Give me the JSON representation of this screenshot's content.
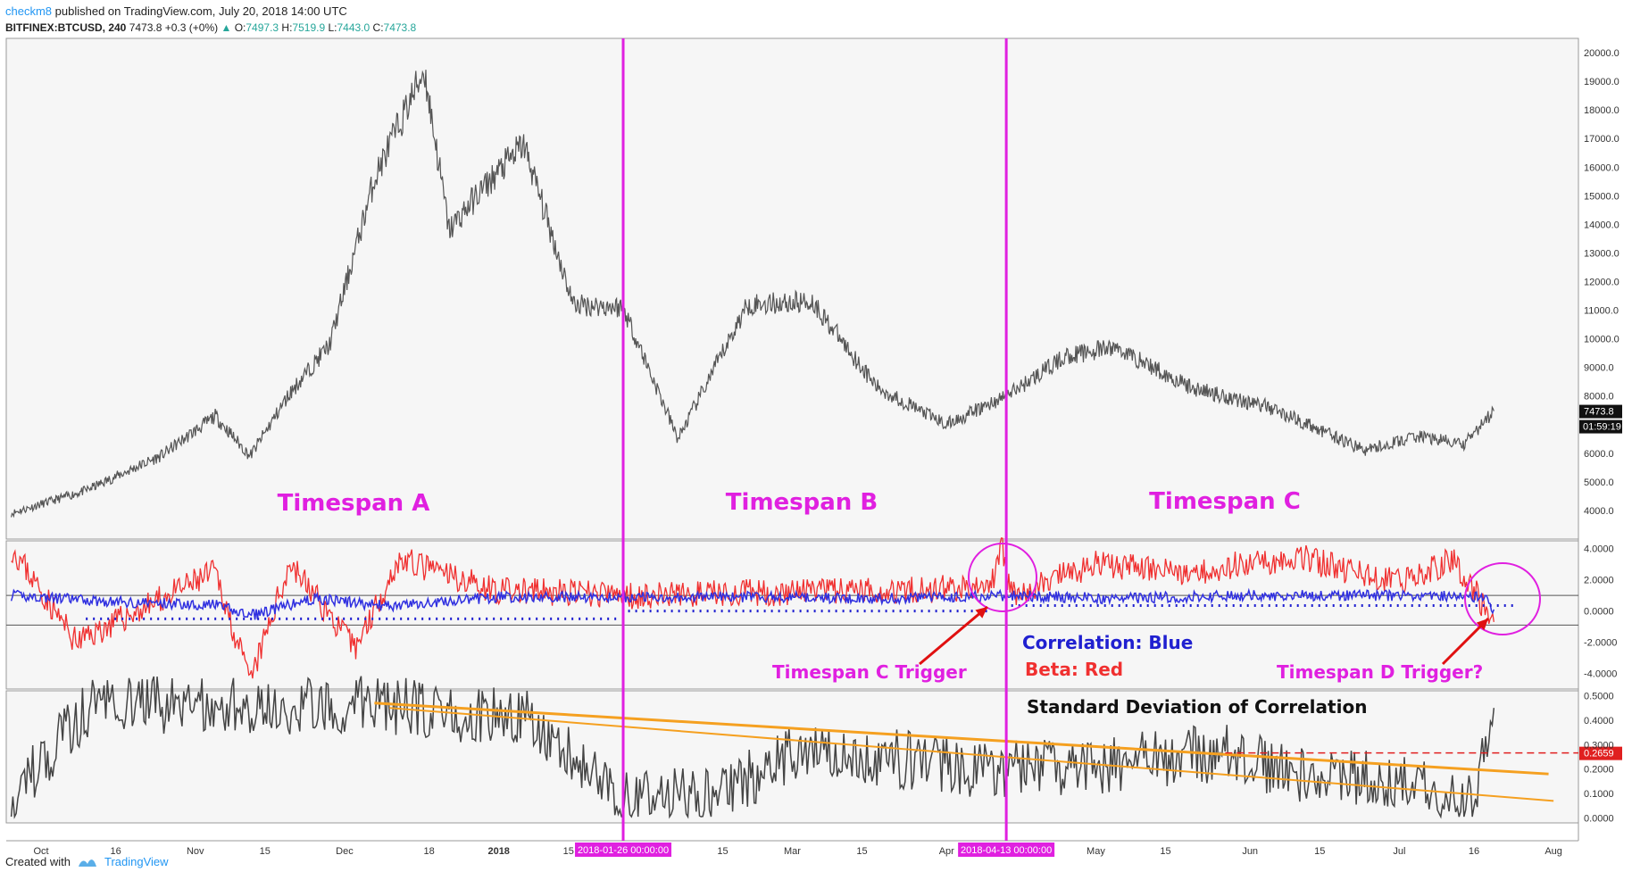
{
  "header": {
    "author": "checkm8",
    "published": " published on TradingView.com, July 20, 2018 14:00 UTC",
    "symbol": "BITFINEX:BTCUSD, 240",
    "last": "7473.8",
    "change": "+0.3 (+0%)",
    "o_label": "O:",
    "o": "7497.3",
    "h_label": "H:",
    "h": "7519.9",
    "l_label": "L:",
    "l": "7443.0",
    "c_label": "C:",
    "c": "7473.8"
  },
  "footer": {
    "created": "Created with",
    "brand": "TradingView"
  },
  "colors": {
    "magenta": "#e020e0",
    "beta": "#f03030",
    "corr": "#3030e0",
    "orange": "#f5a020",
    "price": "#555555"
  },
  "chart_data": [
    {
      "type": "line",
      "title": "BITFINEX:BTCUSD 240 price",
      "x": [
        "2017-09-25",
        "2017-10-10",
        "2017-10-25",
        "2017-11-05",
        "2017-11-12",
        "2017-11-20",
        "2017-11-28",
        "2017-12-07",
        "2017-12-17",
        "2017-12-22",
        "2017-12-28",
        "2018-01-06",
        "2018-01-16",
        "2018-01-26",
        "2018-02-06",
        "2018-02-20",
        "2018-03-05",
        "2018-03-18",
        "2018-04-01",
        "2018-04-13",
        "2018-04-25",
        "2018-05-05",
        "2018-05-20",
        "2018-06-05",
        "2018-06-24",
        "2018-07-05",
        "2018-07-14",
        "2018-07-20"
      ],
      "values": [
        3900,
        4700,
        5900,
        7300,
        5900,
        8100,
        9800,
        15600,
        19400,
        13800,
        15100,
        16800,
        11200,
        11100,
        6500,
        11200,
        11300,
        8300,
        7000,
        8000,
        9400,
        9700,
        8300,
        7600,
        6100,
        6600,
        6300,
        7473.8
      ],
      "ylim": [
        3000,
        20500
      ],
      "yticks": [
        "3000.0",
        "4000.0",
        "5000.0",
        "6000.0",
        "7000.0",
        "8000.0",
        "9000.0",
        "10000.0",
        "11000.0",
        "12000.0",
        "13000.0",
        "14000.0",
        "15000.0",
        "16000.0",
        "17000.0",
        "18000.0",
        "19000.0",
        "20000.0"
      ],
      "last_price_label": "7473.8",
      "countdown_label": "01:59:19",
      "annotations": [
        "Timespan A",
        "Timespan B",
        "Timespan C"
      ]
    },
    {
      "type": "line",
      "title": "Correlation / Beta",
      "series": [
        {
          "name": "Correlation",
          "color": "#3030e0",
          "x": [
            "2017-09-25",
            "2017-10-15",
            "2017-11-05",
            "2017-11-12",
            "2017-11-25",
            "2017-12-10",
            "2018-01-01",
            "2018-01-26",
            "2018-02-20",
            "2018-03-20",
            "2018-04-13",
            "2018-05-05",
            "2018-06-01",
            "2018-07-01",
            "2018-07-18",
            "2018-07-20"
          ],
          "values": [
            1.0,
            0.6,
            0.4,
            -0.3,
            0.8,
            0.3,
            0.9,
            0.9,
            0.9,
            0.8,
            1.0,
            0.8,
            1.0,
            1.0,
            0.9,
            0.1
          ]
        },
        {
          "name": "Beta",
          "color": "#f03030",
          "x": [
            "2017-09-25",
            "2017-10-08",
            "2017-11-05",
            "2017-11-12",
            "2017-11-20",
            "2017-12-03",
            "2017-12-12",
            "2018-01-01",
            "2018-01-26",
            "2018-03-01",
            "2018-04-10",
            "2018-04-12",
            "2018-04-14",
            "2018-05-01",
            "2018-05-20",
            "2018-06-10",
            "2018-07-01",
            "2018-07-12",
            "2018-07-20"
          ],
          "values": [
            4.1,
            -2.0,
            2.5,
            -4.6,
            3.1,
            -2.4,
            3.3,
            1.3,
            1.0,
            1.2,
            1.5,
            4.3,
            1.0,
            3.0,
            2.5,
            3.5,
            1.8,
            3.3,
            -0.7
          ]
        }
      ],
      "ylim": [
        -5,
        4.5
      ],
      "yticks": [
        "4.0000",
        "2.0000",
        "0.0000",
        "-2.0000",
        "-4.0000"
      ],
      "annotations": [
        "Timespan C Trigger",
        "Correlation: Blue",
        "Beta: Red",
        "Timespan D Trigger?"
      ]
    },
    {
      "type": "line",
      "title": "Standard Deviation of Correlation",
      "x": [
        "2017-09-25",
        "2017-10-12",
        "2017-11-01",
        "2017-12-07",
        "2017-12-18",
        "2018-01-08",
        "2018-01-26",
        "2018-02-15",
        "2018-03-03",
        "2018-04-08",
        "2018-05-03",
        "2018-05-28",
        "2018-06-10",
        "2018-07-01",
        "2018-07-16",
        "2018-07-20"
      ],
      "values": [
        0.08,
        0.49,
        0.45,
        0.47,
        0.44,
        0.4,
        0.07,
        0.1,
        0.29,
        0.2,
        0.22,
        0.27,
        0.18,
        0.15,
        0.05,
        0.45
      ],
      "ylim": [
        -0.02,
        0.52
      ],
      "yticks": [
        "0.5000",
        "0.4000",
        "0.3000",
        "0.2000",
        "0.1000",
        "0.0000"
      ],
      "level_label": "0.2659",
      "level_value": 0.2659
    }
  ],
  "xaxis": {
    "ticks": [
      "Oct",
      "16",
      "Nov",
      "15",
      "Dec",
      "18",
      "2018",
      "15",
      "Feb",
      "15",
      "Mar",
      "15",
      "Apr",
      "May",
      "15",
      "Jun",
      "15",
      "Jul",
      "16",
      "Aug"
    ],
    "tick_dates": [
      "2017-10-01",
      "2017-10-16",
      "2017-11-01",
      "2017-11-15",
      "2017-12-01",
      "2017-12-18",
      "2018-01-01",
      "2018-01-15",
      "2018-02-01",
      "2018-02-15",
      "2018-03-01",
      "2018-03-15",
      "2018-04-01",
      "2018-05-01",
      "2018-05-15",
      "2018-06-01",
      "2018-06-15",
      "2018-07-01",
      "2018-07-16",
      "2018-08-01"
    ],
    "markers": [
      {
        "label": "2018-01-26 00:00:00",
        "date": "2018-01-26"
      },
      {
        "label": "2018-04-13 00:00:00",
        "date": "2018-04-13"
      }
    ]
  }
}
